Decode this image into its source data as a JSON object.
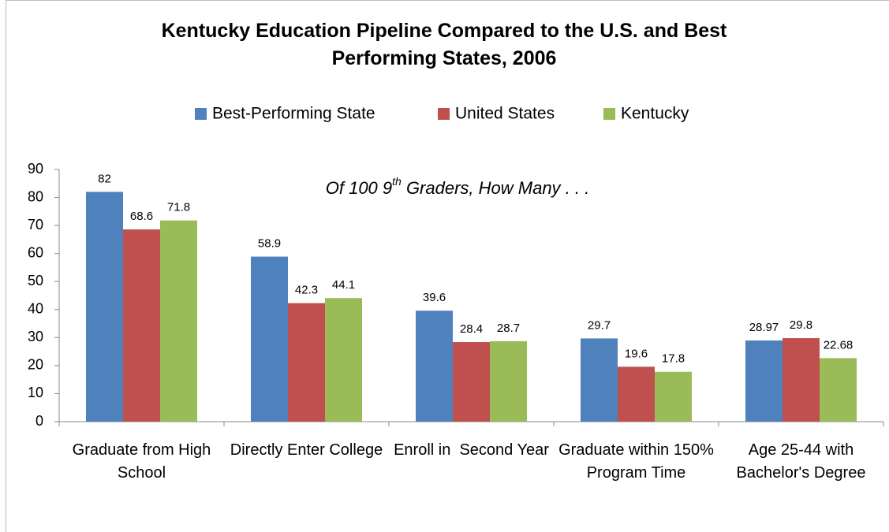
{
  "chart_data": {
    "type": "bar",
    "title": "Kentucky Education Pipeline Compared to the U.S. and Best Performing States, 2006",
    "annotation": [
      "Of 100 9",
      "th",
      " Graders, How Many . . ."
    ],
    "categories": [
      "Graduate from High School",
      "Directly Enter College",
      "Enroll in  Second Year",
      "Graduate within 150% Program Time",
      "Age 25-44 with Bachelor's Degree"
    ],
    "series": [
      {
        "name": "Best-Performing State",
        "color": "#4f81bd",
        "values": [
          82,
          58.9,
          39.6,
          29.7,
          28.97
        ]
      },
      {
        "name": "United States",
        "color": "#c0504d",
        "values": [
          68.6,
          42.3,
          28.4,
          19.6,
          29.8
        ]
      },
      {
        "name": "Kentucky",
        "color": "#9bbb59",
        "values": [
          71.8,
          44.1,
          28.7,
          17.8,
          22.68
        ]
      }
    ],
    "ylim": [
      0,
      90
    ],
    "yticks": [
      0,
      10,
      20,
      30,
      40,
      50,
      60,
      70,
      80,
      90
    ],
    "grid": false,
    "legend": "top"
  }
}
